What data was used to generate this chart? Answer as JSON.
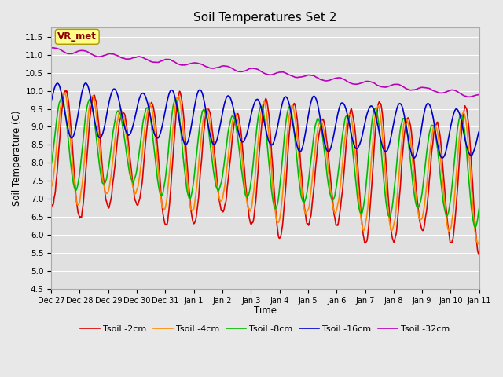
{
  "title": "Soil Temperatures Set 2",
  "xlabel": "Time",
  "ylabel": "Soil Temperature (C)",
  "ylim": [
    4.5,
    11.75
  ],
  "yticks": [
    4.5,
    5.0,
    5.5,
    6.0,
    6.5,
    7.0,
    7.5,
    8.0,
    8.5,
    9.0,
    9.5,
    10.0,
    10.5,
    11.0,
    11.5
  ],
  "colors": {
    "Tsoil -2cm": "#dd0000",
    "Tsoil -4cm": "#ff8800",
    "Tsoil -8cm": "#00bb00",
    "Tsoil -16cm": "#0000cc",
    "Tsoil -32cm": "#bb00bb"
  },
  "legend_labels": [
    "Tsoil -2cm",
    "Tsoil -4cm",
    "Tsoil -8cm",
    "Tsoil -16cm",
    "Tsoil -32cm"
  ],
  "vr_met_label": "VR_met",
  "background_color": "#e8e8e8",
  "plot_bg_color": "#e0e0e0",
  "grid_color": "#ffffff",
  "xtick_labels": [
    "Dec 27",
    "Dec 28",
    "Dec 29",
    "Dec 30",
    "Dec 31",
    "Jan 1",
    "Jan 2",
    "Jan 3",
    "Jan 4",
    "Jan 5",
    "Jan 6",
    "Jan 7",
    "Jan 8",
    "Jan 9",
    "Jan 10",
    "Jan 11"
  ],
  "line_width": 1.2,
  "figsize": [
    6.4,
    4.8
  ],
  "dpi": 100
}
